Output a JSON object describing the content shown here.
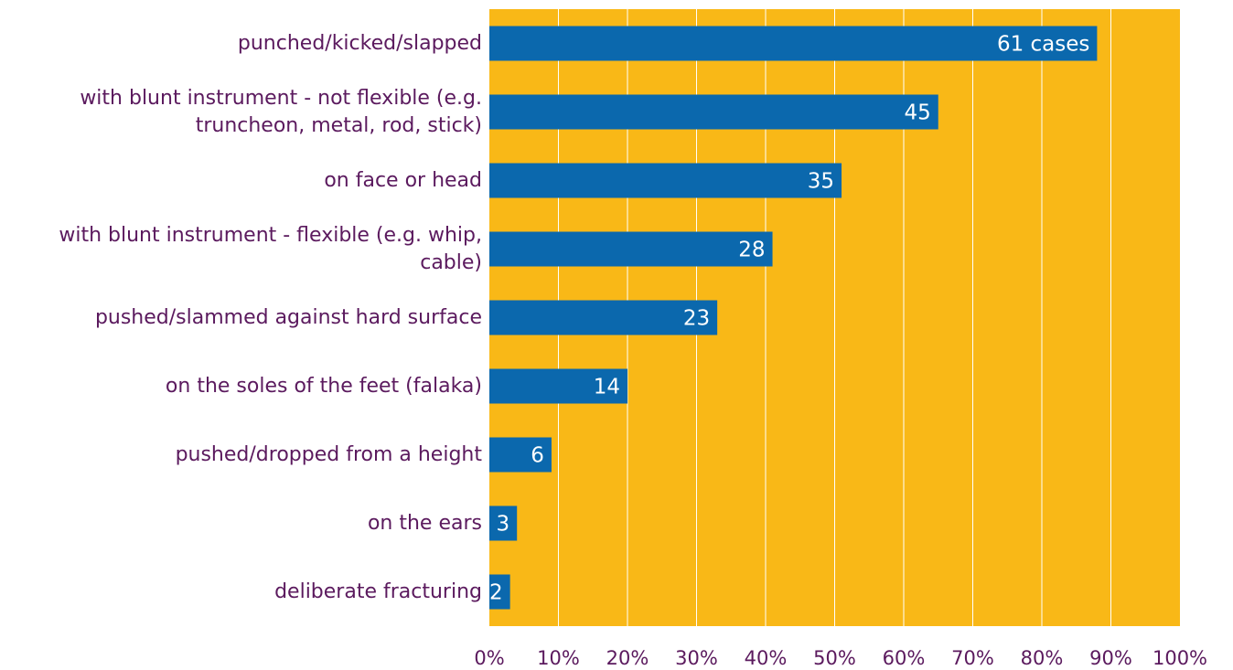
{
  "chart_data": {
    "type": "bar",
    "orientation": "horizontal",
    "categories": [
      "punched/kicked/slapped",
      "with blunt instrument - not flexible (e.g. truncheon, metal, rod, stick)",
      "on face or head",
      "with blunt instrument - flexible (e.g. whip, cable)",
      "pushed/slammed against hard surface",
      "on the soles of the feet (falaka)",
      "pushed/dropped from a height",
      "on the ears",
      "deliberate fracturing"
    ],
    "category_lines": [
      [
        "punched/kicked/slapped"
      ],
      [
        "with blunt instrument - not flexible (e.g.",
        "truncheon, metal, rod, stick)"
      ],
      [
        "on face or head"
      ],
      [
        "with blunt instrument - flexible (e.g. whip,",
        "cable)"
      ],
      [
        "pushed/slammed against hard surface"
      ],
      [
        "on the soles of the feet (falaka)"
      ],
      [
        "pushed/dropped from a height"
      ],
      [
        "on the ears"
      ],
      [
        "deliberate fracturing"
      ]
    ],
    "values": [
      88,
      65,
      51,
      41,
      33,
      20,
      9,
      4,
      3
    ],
    "data_labels": [
      "61 cases",
      "45",
      "35",
      "28",
      "23",
      "14",
      "6",
      "3",
      "2"
    ],
    "xlim": [
      0,
      100
    ],
    "x_ticks": [
      "0%",
      "10%",
      "20%",
      "30%",
      "40%",
      "50%",
      "60%",
      "70%",
      "80%",
      "90%",
      "100%"
    ],
    "grid": "vertical",
    "colors": {
      "plot_background": "#f9b817",
      "bar": "#0b68ad",
      "gridline": "#ffffff",
      "label_text": "#5b1a5e",
      "data_label": "#ffffff"
    }
  }
}
